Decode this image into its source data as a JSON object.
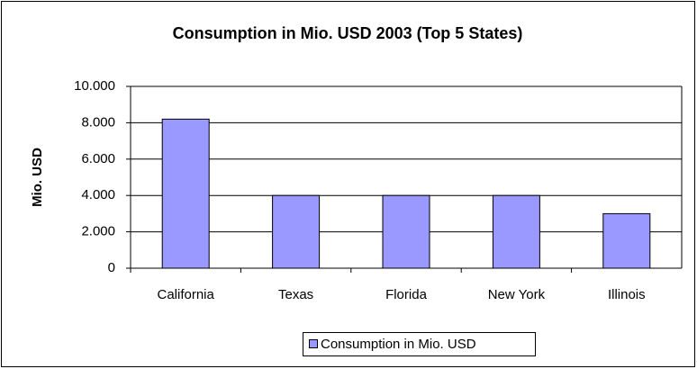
{
  "chart_data": {
    "type": "bar",
    "title": "Consumption in Mio. USD 2003 (Top 5 States)",
    "y_label": "Mio. USD",
    "categories": [
      "California",
      "Texas",
      "Florida",
      "New York",
      "Illinois"
    ],
    "series": [
      {
        "name": "Consumption in Mio. USD",
        "color": "#9999ff",
        "values": [
          8200,
          4000,
          4000,
          4000,
          3000
        ]
      }
    ],
    "ylim": [
      0,
      10000
    ],
    "yticks": [
      0,
      {
        "value": 2000,
        "label": "2.000"
      },
      {
        "value": 4000,
        "label": "4.000"
      },
      {
        "value": 6000,
        "label": "6.000"
      },
      {
        "value": 8000,
        "label": "8.000"
      },
      {
        "value": 10000,
        "label": "10.000"
      }
    ],
    "grid": true,
    "legend": "bottom"
  }
}
